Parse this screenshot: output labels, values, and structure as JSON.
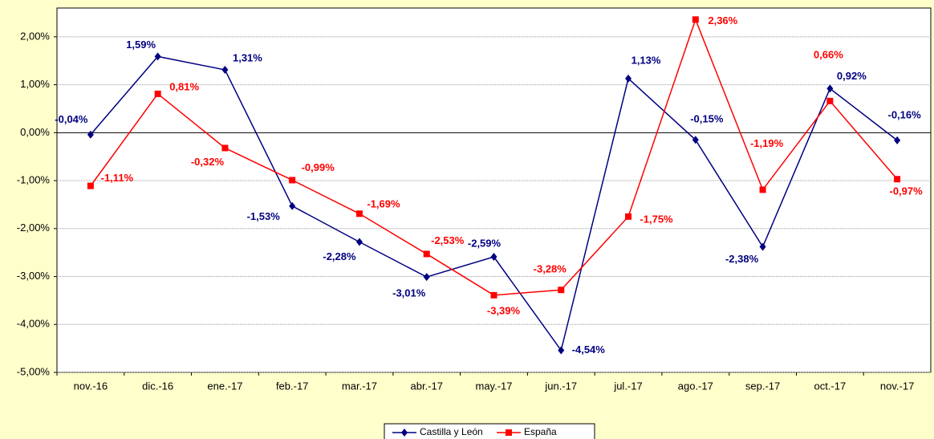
{
  "chart_data": {
    "type": "line",
    "categories": [
      "nov.-16",
      "dic.-16",
      "ene.-17",
      "feb.-17",
      "mar.-17",
      "abr.-17",
      "may.-17",
      "jun.-17",
      "jul.-17",
      "ago.-17",
      "sep.-17",
      "oct.-17",
      "nov.-17"
    ],
    "series": [
      {
        "name": "Castilla y León",
        "color": "#000080",
        "marker": "diamond",
        "values": [
          -0.04,
          1.59,
          1.31,
          -1.53,
          -2.28,
          -3.01,
          -2.59,
          -4.54,
          1.13,
          -0.15,
          -2.38,
          0.92,
          -0.16
        ],
        "value_labels": [
          "-0,04%",
          "1,59%",
          "1,31%",
          "-1,53%",
          "-2,28%",
          "-3,01%",
          "-2,59%",
          "-4,54%",
          "1,13%",
          "-0,15%",
          "-2,38%",
          "0,92%",
          "-0,16%"
        ]
      },
      {
        "name": "España",
        "color": "#FF0000",
        "marker": "square",
        "values": [
          -1.11,
          0.81,
          -0.32,
          -0.99,
          -1.69,
          -2.53,
          -3.39,
          -3.28,
          -1.75,
          2.36,
          -1.19,
          0.66,
          -0.97
        ],
        "value_labels": [
          "-1,11%",
          "0,81%",
          "-0,32%",
          "-0,99%",
          "-1,69%",
          "-2,53%",
          "-3,39%",
          "-3,28%",
          "-1,75%",
          "2,36%",
          "-1,19%",
          "0,66%",
          "-0,97%"
        ]
      }
    ],
    "ylim": [
      -5,
      2.6
    ],
    "yticks": [
      {
        "value": 2,
        "label": "2,00%"
      },
      {
        "value": 1,
        "label": "1,00%"
      },
      {
        "value": 0,
        "label": "0,00%"
      },
      {
        "value": -1,
        "label": "-1,00%"
      },
      {
        "value": -2,
        "label": "-2,00%"
      },
      {
        "value": -3,
        "label": "-3,00%"
      },
      {
        "value": -4,
        "label": "-4,00%"
      },
      {
        "value": -5,
        "label": "-5,00%"
      }
    ],
    "grid": true,
    "legend": "bottom"
  }
}
